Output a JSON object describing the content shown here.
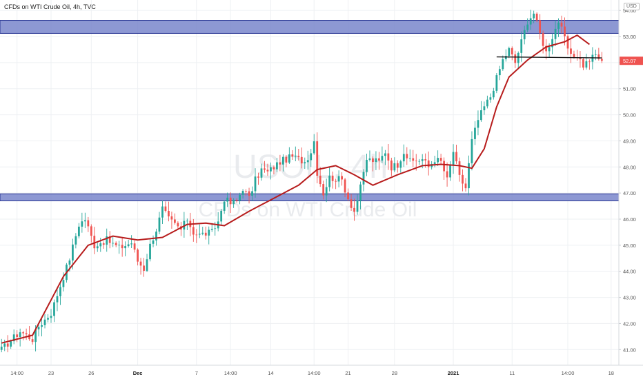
{
  "header": {
    "title": "CFDs on WTI Crude Oil, 4h, TVC",
    "currency": "USD"
  },
  "watermark": {
    "symbol": "USOIL, 4h",
    "description": "CFDs on WTI Crude Oil"
  },
  "colors": {
    "up": "#26a69a",
    "down": "#ef5350",
    "ma": "#b71c1c",
    "zone_fill": "#7986cb",
    "zone_border": "#283593",
    "grid": "#eef0f3",
    "price_badge": "#ef5350"
  },
  "chart_data": {
    "type": "candlestick",
    "title": "CFDs on WTI Crude Oil, 4h, TVC",
    "y_axis": {
      "position": "right",
      "unit": "USD",
      "ylim": [
        40.4,
        54.4
      ],
      "ticks": [
        41.0,
        42.0,
        43.0,
        44.0,
        45.0,
        46.0,
        47.0,
        48.0,
        49.0,
        50.0,
        51.0,
        52.0,
        53.0,
        54.0
      ],
      "tick_labels": [
        "41.00",
        "42.00",
        "43.00",
        "44.00",
        "45.00",
        "46.00",
        "47.00",
        "48.00",
        "49.00",
        "50.00",
        "51.00",
        "52.00",
        "53.00",
        "54.00"
      ]
    },
    "x_axis": {
      "bar_range": [
        0,
        200
      ],
      "tick_bars": [
        5,
        16,
        29,
        44,
        63,
        74,
        87,
        101,
        112,
        127,
        146,
        165,
        183,
        197
      ],
      "tick_labels": [
        "14:00",
        "23",
        "26",
        "Dec",
        "7",
        "14:00",
        "14",
        "14:00",
        "21",
        "28",
        "2021",
        "11",
        "14:00",
        "18"
      ]
    },
    "grid": true,
    "current_price": {
      "value": 52.07,
      "label": "52.07"
    },
    "zones": [
      {
        "y_from": 53.12,
        "y_to": 53.62
      },
      {
        "y_from": 46.7,
        "y_to": 46.97
      }
    ],
    "neckline": {
      "x_from_bar": 160,
      "x_to_bar": 194,
      "from_y": 52.22,
      "to_y": 52.18
    },
    "moving_average": {
      "name": "",
      "points": [
        [
          0,
          41.25
        ],
        [
          10,
          41.55
        ],
        [
          20,
          43.8
        ],
        [
          28,
          45.0
        ],
        [
          36,
          45.35
        ],
        [
          44,
          45.2
        ],
        [
          52,
          45.3
        ],
        [
          60,
          45.8
        ],
        [
          66,
          45.85
        ],
        [
          72,
          45.75
        ],
        [
          80,
          46.3
        ],
        [
          88,
          46.8
        ],
        [
          96,
          47.3
        ],
        [
          102,
          47.9
        ],
        [
          108,
          48.05
        ],
        [
          114,
          47.7
        ],
        [
          120,
          47.3
        ],
        [
          128,
          47.7
        ],
        [
          136,
          48.05
        ],
        [
          142,
          48.1
        ],
        [
          148,
          48.05
        ],
        [
          152,
          47.95
        ],
        [
          156,
          48.7
        ],
        [
          160,
          50.3
        ],
        [
          164,
          51.45
        ],
        [
          170,
          52.1
        ],
        [
          176,
          52.6
        ],
        [
          182,
          52.8
        ],
        [
          186,
          53.05
        ],
        [
          190,
          52.7
        ]
      ]
    },
    "anchors": [
      [
        0,
        41.0
      ],
      [
        6,
        41.7
      ],
      [
        10,
        41.4
      ],
      [
        12,
        41.9
      ],
      [
        16,
        42.4
      ],
      [
        22,
        44.5
      ],
      [
        25,
        45.8
      ],
      [
        27,
        46.0
      ],
      [
        30,
        45.0
      ],
      [
        34,
        45.2
      ],
      [
        38,
        44.9
      ],
      [
        42,
        45.1
      ],
      [
        44,
        44.4
      ],
      [
        46,
        44.1
      ],
      [
        48,
        45.0
      ],
      [
        50,
        45.6
      ],
      [
        52,
        46.4
      ],
      [
        54,
        46.0
      ],
      [
        58,
        45.6
      ],
      [
        60,
        46.0
      ],
      [
        62,
        45.5
      ],
      [
        64,
        45.4
      ],
      [
        68,
        45.5
      ],
      [
        70,
        45.9
      ],
      [
        72,
        46.8
      ],
      [
        74,
        46.6
      ],
      [
        76,
        46.7
      ],
      [
        78,
        47.2
      ],
      [
        80,
        46.8
      ],
      [
        82,
        47.5
      ],
      [
        84,
        47.9
      ],
      [
        86,
        47.8
      ],
      [
        90,
        48.2
      ],
      [
        94,
        48.4
      ],
      [
        98,
        48.2
      ],
      [
        100,
        48.6
      ],
      [
        101,
        49.0
      ],
      [
        102,
        47.8
      ],
      [
        104,
        47.0
      ],
      [
        106,
        47.6
      ],
      [
        110,
        47.5
      ],
      [
        112,
        46.8
      ],
      [
        114,
        46.3
      ],
      [
        116,
        47.2
      ],
      [
        118,
        48.3
      ],
      [
        122,
        48.2
      ],
      [
        124,
        48.6
      ],
      [
        126,
        48.0
      ],
      [
        128,
        48.1
      ],
      [
        130,
        48.6
      ],
      [
        132,
        48.2
      ],
      [
        136,
        48.3
      ],
      [
        138,
        48.0
      ],
      [
        140,
        48.3
      ],
      [
        142,
        48.2
      ],
      [
        144,
        47.5
      ],
      [
        146,
        48.6
      ],
      [
        148,
        47.6
      ],
      [
        150,
        47.2
      ],
      [
        152,
        49.0
      ],
      [
        154,
        49.8
      ],
      [
        156,
        50.3
      ],
      [
        158,
        50.7
      ],
      [
        160,
        51.4
      ],
      [
        162,
        52.1
      ],
      [
        164,
        52.5
      ],
      [
        166,
        52.0
      ],
      [
        168,
        52.8
      ],
      [
        170,
        53.6
      ],
      [
        172,
        53.9
      ],
      [
        174,
        53.1
      ],
      [
        176,
        52.4
      ],
      [
        178,
        53.0
      ],
      [
        180,
        53.6
      ],
      [
        182,
        52.9
      ],
      [
        184,
        52.2
      ],
      [
        186,
        52.3
      ],
      [
        188,
        51.9
      ],
      [
        190,
        52.1
      ],
      [
        192,
        52.3
      ],
      [
        194,
        52.07
      ]
    ]
  }
}
